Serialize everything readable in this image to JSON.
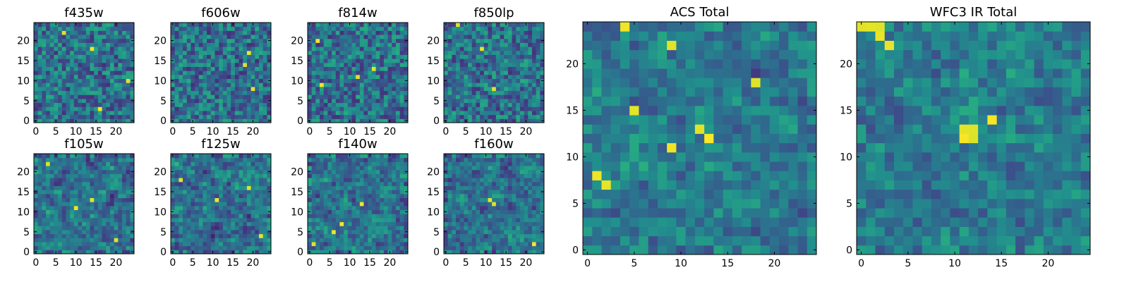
{
  "chart_data": {
    "type": "heatmap",
    "colormap": "viridis",
    "grid": false,
    "panels": [
      {
        "title": "f435w",
        "grid_size": 25,
        "xticks": [
          0,
          5,
          10,
          15,
          20
        ],
        "yticks": [
          0,
          5,
          10,
          15,
          20
        ],
        "xlim": [
          -0.5,
          24.5
        ],
        "ylim": [
          -0.5,
          24.5
        ],
        "peak_pixels": [
          [
            3,
            16
          ],
          [
            10,
            23
          ],
          [
            18,
            14
          ],
          [
            22,
            7
          ]
        ]
      },
      {
        "title": "f606w",
        "grid_size": 25,
        "xticks": [
          0,
          5,
          10,
          15,
          20
        ],
        "yticks": [
          0,
          5,
          10,
          15,
          20
        ],
        "xlim": [
          -0.5,
          24.5
        ],
        "ylim": [
          -0.5,
          24.5
        ],
        "peak_pixels": [
          [
            14,
            18
          ],
          [
            17,
            19
          ],
          [
            8,
            20
          ]
        ]
      },
      {
        "title": "f814w",
        "grid_size": 25,
        "xticks": [
          0,
          5,
          10,
          15,
          20
        ],
        "yticks": [
          0,
          5,
          10,
          15,
          20
        ],
        "xlim": [
          -0.5,
          24.5
        ],
        "ylim": [
          -0.5,
          24.5
        ],
        "peak_pixels": [
          [
            11,
            12
          ],
          [
            9,
            3
          ],
          [
            20,
            2
          ],
          [
            13,
            16
          ]
        ]
      },
      {
        "title": "f850lp",
        "grid_size": 25,
        "xticks": [
          0,
          5,
          10,
          15,
          20
        ],
        "yticks": [
          0,
          5,
          10,
          15,
          20
        ],
        "xlim": [
          -0.5,
          24.5
        ],
        "ylim": [
          -0.5,
          24.5
        ],
        "peak_pixels": [
          [
            24,
            3
          ],
          [
            8,
            12
          ],
          [
            18,
            9
          ]
        ]
      },
      {
        "title": "f105w",
        "grid_size": 25,
        "xticks": [
          0,
          5,
          10,
          15,
          20
        ],
        "yticks": [
          0,
          5,
          10,
          15,
          20
        ],
        "xlim": [
          -0.5,
          24.5
        ],
        "ylim": [
          -0.5,
          24.5
        ],
        "peak_pixels": [
          [
            11,
            10
          ],
          [
            13,
            14
          ],
          [
            22,
            3
          ],
          [
            3,
            20
          ]
        ]
      },
      {
        "title": "f125w",
        "grid_size": 25,
        "xticks": [
          0,
          5,
          10,
          15,
          20
        ],
        "yticks": [
          0,
          5,
          10,
          15,
          20
        ],
        "xlim": [
          -0.5,
          24.5
        ],
        "ylim": [
          -0.5,
          24.5
        ],
        "peak_pixels": [
          [
            16,
            19
          ],
          [
            13,
            11
          ],
          [
            18,
            2
          ],
          [
            4,
            22
          ]
        ]
      },
      {
        "title": "f140w",
        "grid_size": 25,
        "xticks": [
          0,
          5,
          10,
          15,
          20
        ],
        "yticks": [
          0,
          5,
          10,
          15,
          20
        ],
        "xlim": [
          -0.5,
          24.5
        ],
        "ylim": [
          -0.5,
          24.5
        ],
        "peak_pixels": [
          [
            12,
            13
          ],
          [
            7,
            8
          ],
          [
            2,
            1
          ],
          [
            5,
            6
          ]
        ]
      },
      {
        "title": "f160w",
        "grid_size": 25,
        "xticks": [
          0,
          5,
          10,
          15,
          20
        ],
        "yticks": [
          0,
          5,
          10,
          15,
          20
        ],
        "xlim": [
          -0.5,
          24.5
        ],
        "ylim": [
          -0.5,
          24.5
        ],
        "peak_pixels": [
          [
            12,
            12
          ],
          [
            2,
            22
          ],
          [
            13,
            11
          ]
        ]
      },
      {
        "title": "ACS Total",
        "grid_size": 25,
        "xticks": [
          0,
          5,
          10,
          15,
          20
        ],
        "yticks": [
          0,
          5,
          10,
          15,
          20
        ],
        "xlim": [
          -0.5,
          24.5
        ],
        "ylim": [
          -0.5,
          24.5
        ],
        "peak_pixels": [
          [
            24,
            4
          ],
          [
            18,
            18
          ],
          [
            7,
            2
          ],
          [
            12,
            13
          ],
          [
            13,
            12
          ],
          [
            15,
            5
          ],
          [
            8,
            1
          ],
          [
            11,
            9
          ],
          [
            22,
            9
          ]
        ]
      },
      {
        "title": "WFC3 IR Total",
        "grid_size": 25,
        "xticks": [
          0,
          5,
          10,
          15,
          20
        ],
        "yticks": [
          0,
          5,
          10,
          15,
          20
        ],
        "xlim": [
          -0.5,
          24.5
        ],
        "ylim": [
          -0.5,
          24.5
        ],
        "peak_pixels": [
          [
            24,
            0
          ],
          [
            24,
            1
          ],
          [
            23,
            2
          ],
          [
            24,
            2
          ],
          [
            22,
            3
          ],
          [
            12,
            11
          ],
          [
            12,
            12
          ],
          [
            13,
            12
          ],
          [
            13,
            11
          ],
          [
            14,
            14
          ]
        ]
      }
    ]
  }
}
